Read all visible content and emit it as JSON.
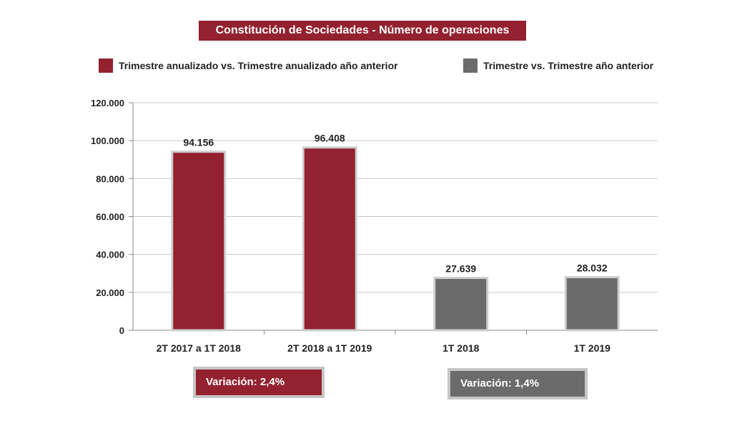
{
  "chart_data": {
    "type": "bar",
    "title": "Constitución de Sociedades - Número de operaciones",
    "categories": [
      "2T 2017 a 1T 2018",
      "2T 2018 a 1T 2019",
      "1T 2018",
      "1T 2019"
    ],
    "values": [
      94156,
      96408,
      27639,
      28032
    ],
    "value_labels": [
      "94.156",
      "96.408",
      "27.639",
      "28.032"
    ],
    "bar_colors": [
      "#93212f",
      "#93212f",
      "#6b6b6b",
      "#6b6b6b"
    ],
    "series": [
      {
        "name": "Trimestre anualizado vs. Trimestre anualizado año anterior",
        "color": "#93212f",
        "categories": [
          "2T 2017 a 1T 2018",
          "2T 2018 a 1T 2019"
        ]
      },
      {
        "name": "Trimestre vs. Trimestre año anterior",
        "color": "#6b6b6b",
        "categories": [
          "1T 2018",
          "1T 2019"
        ]
      }
    ],
    "ylim": [
      0,
      120000
    ],
    "yticks": [
      0,
      20000,
      40000,
      60000,
      80000,
      100000,
      120000
    ],
    "ytick_labels": [
      "0",
      "20.000",
      "40.000",
      "60.000",
      "80.000",
      "100.000",
      "120.000"
    ],
    "grid": true,
    "legend": "top",
    "xlabel": "",
    "ylabel": "",
    "annotations": [
      {
        "text": "Variación:  2,4%",
        "color": "#93212f"
      },
      {
        "text": "Variación: 1,4%",
        "color": "#6b6b6b"
      }
    ]
  }
}
